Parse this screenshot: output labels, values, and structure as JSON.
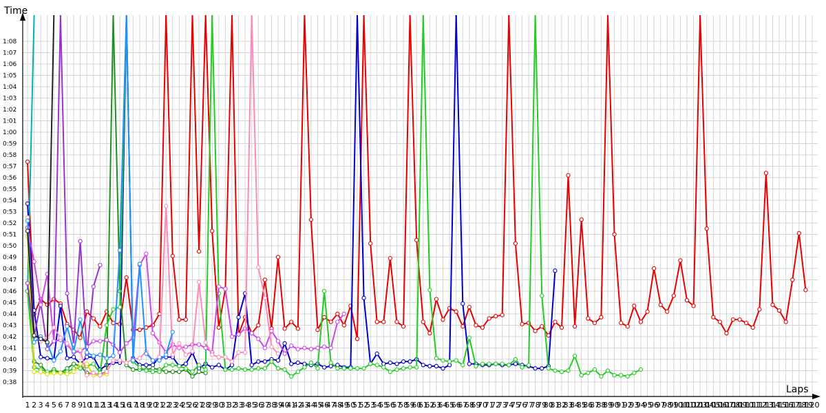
{
  "chart_data": {
    "type": "line",
    "ylabel": "Time",
    "xlabel": "Laps",
    "grid": true,
    "y_ticks": [
      "0:38",
      "0:39",
      "0:40",
      "0:41",
      "0:42",
      "0:43",
      "0:44",
      "0:45",
      "0:46",
      "0:47",
      "0:48",
      "0:49",
      "0:50",
      "0:51",
      "0:52",
      "0:53",
      "0:54",
      "0:55",
      "0:56",
      "0:57",
      "0:58",
      "0:59",
      "1:00",
      "1:01",
      "1:02",
      "1:03",
      "1:04",
      "1:05",
      "1:06",
      "1:07",
      "1:08"
    ],
    "x_ticks": [
      1,
      2,
      3,
      4,
      5,
      6,
      7,
      8,
      9,
      10,
      11,
      12,
      13,
      14,
      15,
      16,
      17,
      18,
      19,
      20,
      21,
      22,
      23,
      24,
      25,
      26,
      27,
      28,
      29,
      30,
      31,
      32,
      33,
      34,
      35,
      36,
      37,
      38,
      39,
      40,
      41,
      42,
      43,
      44,
      45,
      46,
      47,
      48,
      49,
      50,
      51,
      52,
      53,
      54,
      55,
      56,
      57,
      58,
      59,
      60,
      61,
      62,
      63,
      64,
      65,
      66,
      67,
      68,
      69,
      70,
      71,
      72,
      73,
      74,
      75,
      76,
      77,
      78,
      79,
      80,
      81,
      82,
      83,
      84,
      85,
      86,
      87,
      88,
      89,
      90,
      91,
      92,
      93,
      94,
      95,
      96,
      97,
      98,
      99,
      100,
      101,
      102,
      103,
      104,
      105,
      106,
      107,
      108,
      109,
      110,
      111,
      112,
      113,
      114,
      115,
      116,
      117,
      118,
      119,
      120
    ],
    "series": [
      {
        "color": "#e60000",
        "values": [
          57.4,
          44,
          45.3,
          44.8,
          45.3,
          44.9,
          43.1,
          42.6,
          41.9,
          44.2,
          43.6,
          42.9,
          44.2,
          43.2,
          43.1,
          47.2,
          42.6,
          42.6,
          42.8,
          43,
          44,
          "spike",
          49.1,
          43.5,
          43.5,
          "spike",
          49.5,
          "spike",
          51.3,
          42.8,
          46.2,
          "spike",
          42.2,
          43.7,
          42.3,
          43,
          47,
          42.7,
          49,
          42.7,
          43.3,
          42.7,
          "spike",
          52.3,
          42.6,
          43.7,
          43.3,
          44,
          43,
          44.7,
          41.8,
          "spike",
          50.2,
          43.3,
          43.3,
          48.9,
          43.3,
          42.9,
          "spike",
          50.5,
          43.3,
          42.3,
          45.3,
          43.5,
          44.5,
          44.2,
          42.9,
          44.6,
          43,
          42.8,
          43.6,
          43.8,
          43.9,
          "spike",
          50.2,
          43.1,
          43.2,
          42.5,
          42.9,
          42.1,
          43.3,
          42.8,
          56.2,
          42.9,
          52.3,
          43.6,
          43.2,
          43.7,
          "spike",
          51,
          43.2,
          42.9,
          44.7,
          43.3,
          44.2,
          48,
          44.8,
          44.2,
          45.6,
          48.7,
          45.2,
          44.7,
          "spike",
          51.5,
          43.7,
          43.3,
          42.3,
          43.5,
          43.5,
          43.2,
          42.8,
          44.4,
          56.4,
          44.8,
          44.3,
          43.3,
          47,
          51.1,
          46.1
        ]
      },
      {
        "color": "#00b3b3",
        "values": [
          46,
          "spike"
        ]
      },
      {
        "color": "#0000cc",
        "values": [
          53.7,
          44.3,
          40.2,
          40.1,
          40,
          44.7,
          40.1,
          40.2,
          39.6,
          40.2,
          40.2,
          39.1,
          39.5,
          39.7,
          39.7,
          "spike",
          40.1,
          39.5,
          39.5,
          39.5,
          40.2,
          40.2,
          40.2,
          39.4,
          39.6,
          40.6,
          39.2,
          39.6,
          39.3,
          39.5,
          39.1,
          39.5,
          43.7,
          45.8,
          39.5,
          39.8,
          39.8,
          40,
          39.9,
          41.4,
          39.6,
          39.7,
          39.6,
          39.5,
          39.6,
          39.3,
          39.4,
          39.5,
          39.3,
          39.3,
          "spike",
          45.4,
          39.6,
          40.5,
          39.6,
          39.7,
          39.6,
          39.8,
          39.8,
          40,
          39.5,
          39.4,
          39.4,
          39.2,
          39.5,
          "spike",
          44.9,
          39.6,
          39.6,
          39.5,
          39.5,
          39.6,
          39.5,
          39.5,
          39.6,
          39.5,
          39.4,
          39.2,
          39.2,
          39.4,
          47.8
        ]
      },
      {
        "color": "#1f8f1f",
        "values": [
          46,
          39.8,
          39.5,
          38.8,
          39.1,
          38.8,
          39.2,
          39.6,
          39.4,
          38.8,
          38.7,
          38.7,
          38.9,
          "spike",
          46,
          39.5,
          39.1,
          39.1,
          39.1,
          39.2,
          39.1,
          38.9,
          38.9,
          38.9,
          39.1,
          38.5,
          38.9,
          38.8
        ]
      },
      {
        "color": "#22cc22",
        "values": [
          46,
          39.3,
          39.1,
          38.9,
          38.9,
          38.8,
          38.9,
          39.2,
          39.2,
          39.4,
          39.6,
          38.8,
          43,
          44.4,
          44.6,
          "spike",
          39.8,
          39.3,
          39,
          38.9,
          38.9,
          39.5,
          39.5,
          39.4,
          39.2,
          38.9,
          39.5,
          39.1,
          "spike",
          45.8,
          39.1,
          39.1,
          39.2,
          39.1,
          39.1,
          39.2,
          39.2,
          39.8,
          39.2,
          39.1,
          38.5,
          38.9,
          39.3,
          39.7,
          39.2,
          46,
          39.7,
          39.2,
          39.2,
          39.2,
          39.2,
          39.2,
          39.6,
          39.5,
          39.3,
          38.9,
          39.1,
          39.2,
          39.3,
          39.3,
          "spike",
          46.1,
          40.1,
          39.9,
          39.8,
          39.9,
          39.5,
          41.9,
          39.4,
          39.6,
          39.6,
          39.6,
          39.6,
          39.5,
          40,
          39.3,
          39.5,
          "spike",
          45.6,
          39.2,
          39,
          38.9,
          39,
          40.3,
          38.6,
          38.8,
          39.1,
          38.5,
          39,
          38.6,
          38.6,
          38.5,
          38.8,
          39.1
        ]
      },
      {
        "color": "#dddd00",
        "values": [
          50.8,
          38.9,
          38.9,
          38.7,
          38.8,
          38.8,
          38.7,
          38.9,
          39.6,
          39.6,
          38.6,
          38.6,
          38.7
        ]
      },
      {
        "color": "#9933cc",
        "values": [
          46.7,
          42,
          45,
          40.9,
          41.6,
          "spike",
          45.8,
          41.3,
          50.4,
          40.5,
          46.4,
          48.3
        ]
      },
      {
        "color": "#cc44ee",
        "values": [
          51.6,
          48.6,
          44.8,
          47.5,
          41.6,
          41.7,
          41.3,
          40.6,
          40.7,
          41.1,
          41.6,
          41.6,
          41.7,
          41.3,
          40.6,
          41.4,
          41.9,
          48.3,
          49.3,
          42.3,
          41.5,
          40.6,
          41.3,
          41,
          41.1,
          41.3,
          41.3,
          41,
          40.6,
          46.4,
          46.2,
          42,
          42.2,
          42.7,
          42.3,
          41.8,
          41,
          42.5,
          41.6,
          40.5,
          41.2,
          40.9,
          41,
          40.9,
          41,
          41.1,
          41,
          43.3,
          44
        ]
      },
      {
        "color": "#ff88bb",
        "values": [
          52.5,
          42.2,
          41.6,
          41.9,
          42.8,
          41.9,
          41.4,
          40.7,
          40.8,
          38.6,
          38.8,
          38.6,
          38.9,
          39.9,
          39.9,
          39.7,
          40,
          40.1,
          40.7,
          39.9,
          40.2,
          53.5,
          40.4,
          41.4,
          40.4,
          40.7,
          46.8,
          41.5,
          40.4,
          40.2,
          40.2,
          39.8,
          40.6,
          40.6,
          "spike",
          48.1,
          45.4,
          41.1,
          40.5
        ]
      },
      {
        "color": "#1e90ff",
        "values": [
          52.2,
          41.5,
          42,
          41.4,
          39.9,
          40.7,
          42.9,
          40.7,
          43.5,
          40.6,
          40.3,
          40.4,
          40.1,
          40.3,
          49.6,
          "spike",
          39.9,
          48.4,
          40.5,
          39.9,
          39.9,
          40.4,
          42.4
        ]
      },
      {
        "color": "#222222",
        "values": [
          51.3,
          42.1,
          41.8,
          41.5,
          "spike"
        ]
      }
    ]
  }
}
